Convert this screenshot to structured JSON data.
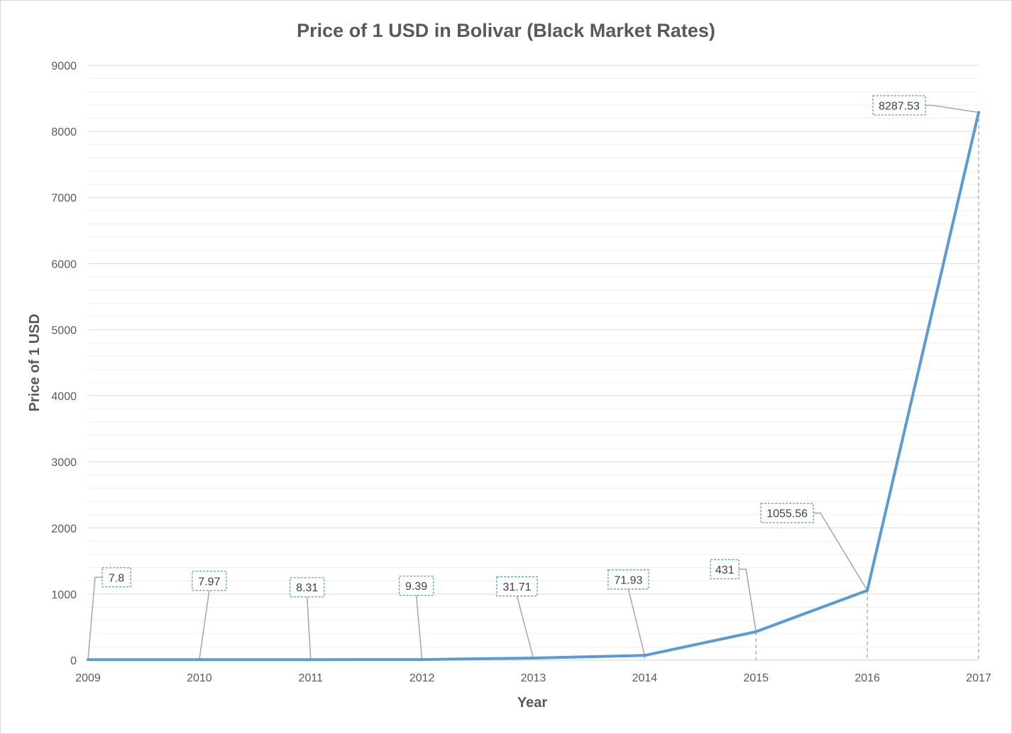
{
  "chart_data": {
    "type": "line",
    "title": "Price of 1 USD in Bolivar (Black Market Rates)",
    "xlabel": "Year",
    "ylabel": "Price of 1 USD",
    "categories": [
      "2009",
      "2010",
      "2011",
      "2012",
      "2013",
      "2014",
      "2015",
      "2016",
      "2017"
    ],
    "series": [
      {
        "values": [
          7.8,
          7.97,
          8.31,
          9.39,
          31.71,
          71.93,
          431,
          1055.56,
          8287.53
        ],
        "color": "#5b9bd5"
      }
    ],
    "data_labels": [
      "7.8",
      "7.97",
      "8.31",
      "9.39",
      "31.71",
      "71.93",
      "431",
      "1055.56",
      "8287.53"
    ],
    "ylim": [
      0,
      9000
    ],
    "yticks": [
      "0",
      "1000",
      "2000",
      "3000",
      "4000",
      "5000",
      "6000",
      "7000",
      "8000",
      "9000"
    ],
    "grid": true,
    "minor_grid": true,
    "legend": "none",
    "drop_lines": true
  }
}
